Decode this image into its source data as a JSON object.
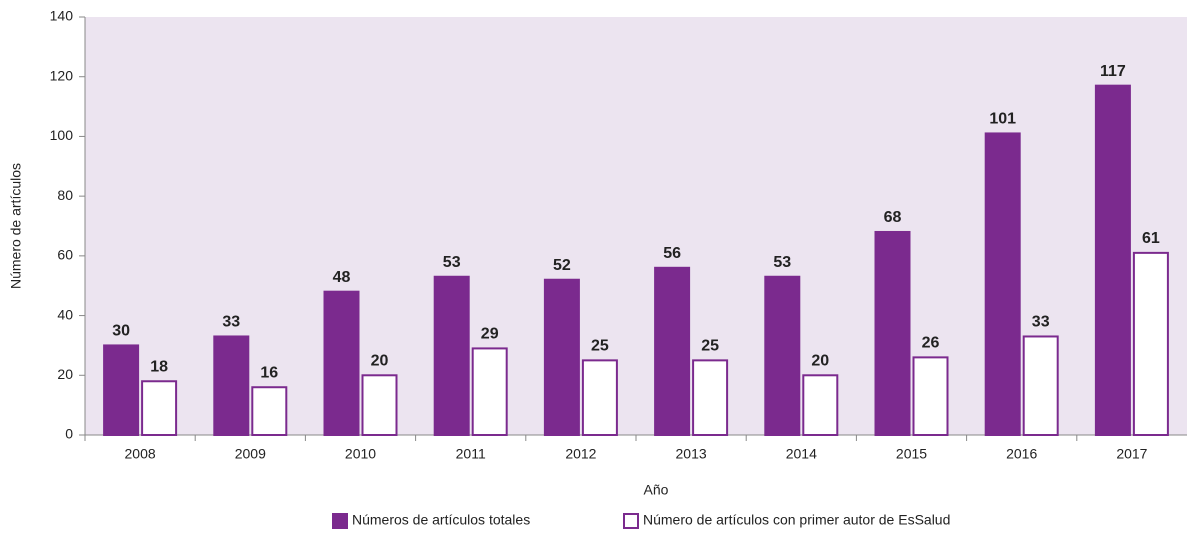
{
  "chart_data": {
    "type": "bar",
    "x_label": "Año",
    "y_label": "Número de artículos",
    "categories": [
      "2008",
      "2009",
      "2010",
      "2011",
      "2012",
      "2013",
      "2014",
      "2015",
      "2016",
      "2017"
    ],
    "series": [
      {
        "name": "Números de artículos totales",
        "color": "#7b2a8e",
        "fill": "#7b2a8e",
        "values": [
          30,
          33,
          48,
          53,
          52,
          56,
          53,
          68,
          101,
          117
        ]
      },
      {
        "name": "Número de artículos con primer autor de EsSalud",
        "color": "#7b2a8e",
        "fill": "#ffffff",
        "values": [
          18,
          16,
          20,
          29,
          25,
          25,
          20,
          26,
          33,
          61
        ]
      }
    ],
    "ylim": [
      0,
      140
    ],
    "yticks": [
      0,
      20,
      40,
      60,
      80,
      100,
      120,
      140
    ],
    "plot_background": "#ece4f0"
  }
}
